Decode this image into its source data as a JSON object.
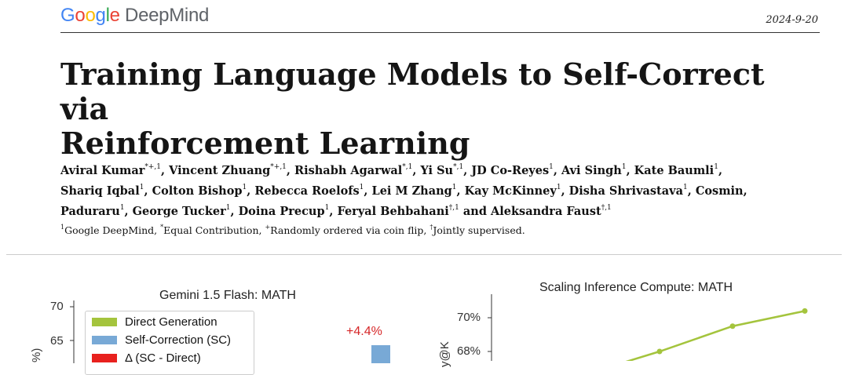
{
  "header": {
    "logo": {
      "google": "Google",
      "deepmind": "DeepMind"
    },
    "date": "2024-9-20"
  },
  "title": {
    "line1": "Training Language Models to Self-Correct via",
    "line2": "Reinforcement Learning"
  },
  "authors": {
    "line1": [
      {
        "name": "Aviral Kumar",
        "sup": "*+,1"
      },
      {
        "name": "Vincent Zhuang",
        "sup": "*+,1"
      },
      {
        "name": "Rishabh Agarwal",
        "sup": "*,1"
      },
      {
        "name": "Yi Su",
        "sup": "*,1"
      },
      {
        "name": "JD Co-Reyes",
        "sup": "1"
      },
      {
        "name": "Avi Singh",
        "sup": "1"
      },
      {
        "name": "Kate Baumli",
        "sup": "1"
      }
    ],
    "line2": [
      {
        "name": "Shariq Iqbal",
        "sup": "1"
      },
      {
        "name": "Colton Bishop",
        "sup": "1"
      },
      {
        "name": "Rebecca Roelofs",
        "sup": "1"
      },
      {
        "name": "Lei M Zhang",
        "sup": "1"
      },
      {
        "name": "Kay McKinney",
        "sup": "1"
      },
      {
        "name": "Disha Shrivastava",
        "sup": "1"
      },
      {
        "name": "Cosmin",
        "sup": ""
      }
    ],
    "line3": [
      {
        "name": "Paduraru",
        "sup": "1"
      },
      {
        "name": "George Tucker",
        "sup": "1"
      },
      {
        "name": "Doina Precup",
        "sup": "1"
      },
      {
        "name": "Feryal Behbahani",
        "sup": "†,1"
      },
      {
        "name": "and Aleksandra Faust",
        "sup": "†,1"
      }
    ]
  },
  "affiliations": {
    "sup1": "1",
    "text1": "Google DeepMind, ",
    "sup2": "*",
    "text2": "Equal Contribution, ",
    "sup3": "+",
    "text3": "Randomly ordered via coin flip, ",
    "sup4": "†",
    "text4": "Jointly supervised."
  },
  "chart_data": [
    {
      "type": "bar",
      "title": "Gemini 1.5 Flash: MATH",
      "ylabel": "%)",
      "yticks": [
        "70",
        "65"
      ],
      "legend": [
        {
          "label": "Direct Generation",
          "color": "#a4c43d"
        },
        {
          "label": "Self-Correction (SC)",
          "color": "#78a9d6"
        },
        {
          "label": "Δ (SC - Direct)",
          "color": "#e8211e"
        }
      ],
      "annotation": "+4.4%",
      "visible_bars": [
        {
          "series": "Self-Correction (SC)",
          "value_top_above": 65.8
        }
      ]
    },
    {
      "type": "line",
      "title": "Scaling Inference Compute: MATH",
      "ylabel": "y@K",
      "yticks": [
        "70%",
        "68%"
      ],
      "series": [
        {
          "name": "",
          "color": "#a4c43d",
          "values": [
            67.0,
            68.0,
            69.5,
            70.4
          ]
        },
        {
          "name": "",
          "color": "#78a9d6",
          "values": [
            67.0
          ]
        }
      ]
    }
  ]
}
